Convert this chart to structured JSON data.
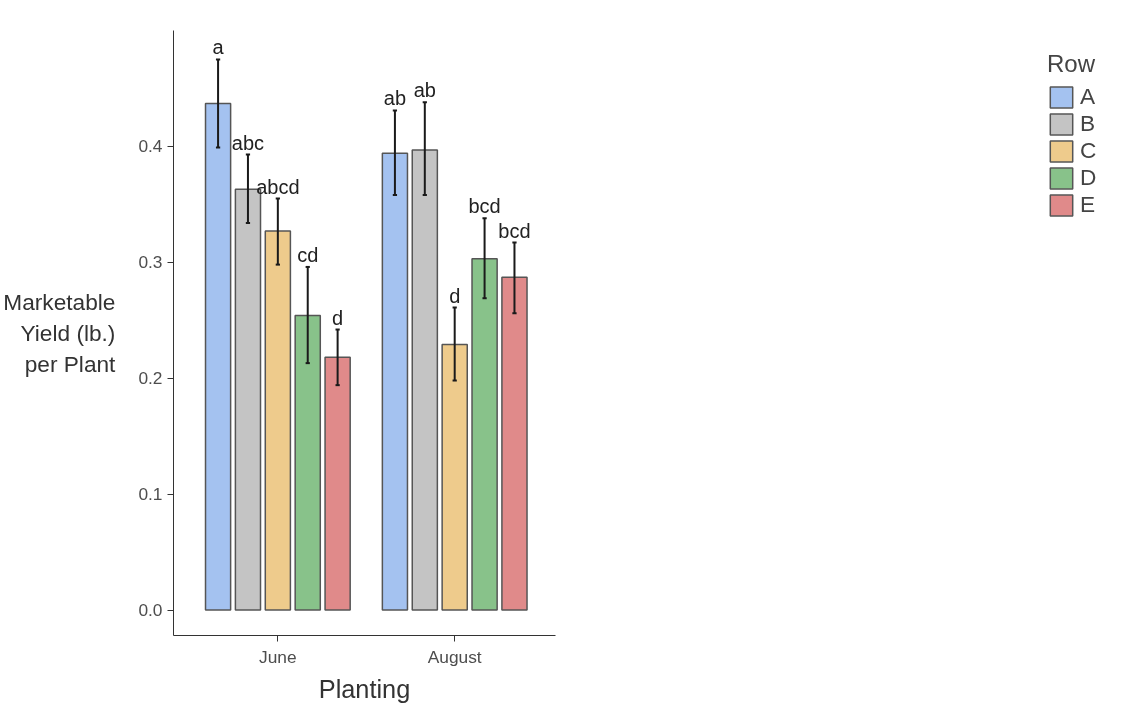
{
  "chart_data": {
    "type": "bar",
    "xlabel": "Planting",
    "ylabel": "Marketable Yield (lb.) per Plant",
    "legend_title": "Row",
    "legend": "right",
    "grid": false,
    "categories": [
      "June",
      "August"
    ],
    "ylim": [
      -0.022,
      0.5
    ],
    "yticks": [
      {
        "value": 0,
        "label": "0.0"
      },
      0.1,
      0.2,
      0.3,
      0.4
    ],
    "series": [
      {
        "name": "A",
        "color": "#a4c2f0",
        "values": [
          0.437,
          0.394
        ],
        "errors": [
          [
            0.399,
            0.475
          ],
          [
            0.358,
            0.431
          ]
        ],
        "value_labels": [
          "a",
          "ab"
        ]
      },
      {
        "name": "B",
        "color": "#c4c4c4",
        "values": [
          0.363,
          0.397
        ],
        "errors": [
          [
            0.334,
            0.393
          ],
          [
            0.358,
            0.438
          ]
        ],
        "value_labels": [
          "abc",
          "ab"
        ]
      },
      {
        "name": "C",
        "color": "#eecb8c",
        "values": [
          0.327,
          0.229
        ],
        "errors": [
          [
            0.298,
            0.355
          ],
          [
            0.198,
            0.261
          ]
        ],
        "value_labels": [
          "abcd",
          "d"
        ]
      },
      {
        "name": "D",
        "color": "#88c28a",
        "values": [
          0.254,
          0.303
        ],
        "errors": [
          [
            0.213,
            0.296
          ],
          [
            0.269,
            0.338
          ]
        ],
        "value_labels": [
          "cd",
          "bcd"
        ]
      },
      {
        "name": "E",
        "color": "#e08a8a",
        "values": [
          0.218,
          0.287
        ],
        "errors": [
          [
            0.194,
            0.242
          ],
          [
            0.256,
            0.317
          ]
        ],
        "value_labels": [
          "d",
          "bcd"
        ]
      }
    ]
  }
}
